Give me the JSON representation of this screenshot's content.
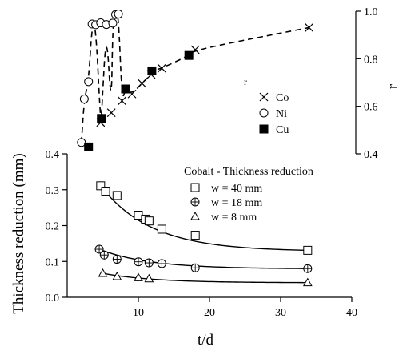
{
  "chart_data": [
    {
      "type": "scatter",
      "title": "",
      "ylabel": "r",
      "yaxis_position": "right",
      "ylim": [
        0.4,
        1.0
      ],
      "yticks": [
        0.4,
        0.6,
        0.8,
        1.0
      ],
      "ytick_labels": [
        "0.4",
        "0.6",
        "0.8",
        "1.0"
      ],
      "legend_title": "r",
      "legend_placement": "center-right",
      "series": [
        {
          "name": "Co",
          "marker": "x",
          "x": [
            4.7,
            6.2,
            7.7,
            9.1,
            10.5,
            11.8,
            13.3,
            18.0,
            34.0
          ],
          "y": [
            0.532,
            0.573,
            0.623,
            0.652,
            0.697,
            0.734,
            0.76,
            0.838,
            0.931
          ]
        },
        {
          "name": "Ni",
          "marker": "circle",
          "x": [
            2.0,
            2.4,
            3.0,
            3.5,
            4.0,
            4.7,
            5.5,
            6.4,
            6.8,
            7.2
          ],
          "y": [
            0.448,
            0.631,
            0.704,
            0.946,
            0.943,
            0.951,
            0.944,
            0.95,
            0.986,
            0.988
          ]
        },
        {
          "name": "Cu",
          "marker": "square-filled",
          "x": [
            3.0,
            4.8,
            8.2,
            11.9,
            17.1
          ],
          "y": [
            0.429,
            0.549,
            0.673,
            0.749,
            0.814
          ]
        }
      ],
      "fit_curve_style": "dashed"
    },
    {
      "type": "scatter",
      "title": "",
      "xlabel": "t/d",
      "ylabel": "Thickness reduction (mm)",
      "xlim": [
        0,
        40
      ],
      "ylim": [
        0,
        0.4
      ],
      "xticks": [
        10,
        20,
        30,
        40
      ],
      "xtick_labels": [
        "10",
        "20",
        "30",
        "40"
      ],
      "yticks": [
        0.0,
        0.1,
        0.2,
        0.3,
        0.4
      ],
      "ytick_labels": [
        "0.0",
        "0.1",
        "0.2",
        "0.3",
        "0.4"
      ],
      "legend_title": "Cobalt - Thickness reduction",
      "legend_placement": "top-right",
      "series": [
        {
          "name": "w = 40 mm",
          "marker": "square",
          "x": [
            4.7,
            5.4,
            7.0,
            10.0,
            11.0,
            11.5,
            13.3,
            18.0,
            33.8
          ],
          "y": [
            0.311,
            0.296,
            0.284,
            0.229,
            0.218,
            0.213,
            0.19,
            0.173,
            0.131
          ]
        },
        {
          "name": "w = 18 mm",
          "marker": "circle-plus",
          "x": [
            4.5,
            5.2,
            7.0,
            10.0,
            11.5,
            13.3,
            18.0,
            33.8
          ],
          "y": [
            0.134,
            0.118,
            0.106,
            0.099,
            0.096,
            0.094,
            0.082,
            0.08
          ]
        },
        {
          "name": "w = 8 mm",
          "marker": "triangle",
          "x": [
            5.0,
            7.0,
            10.0,
            11.5,
            33.8
          ],
          "y": [
            0.067,
            0.058,
            0.055,
            0.052,
            0.041
          ]
        }
      ],
      "fit_curve_style": "solid"
    }
  ]
}
